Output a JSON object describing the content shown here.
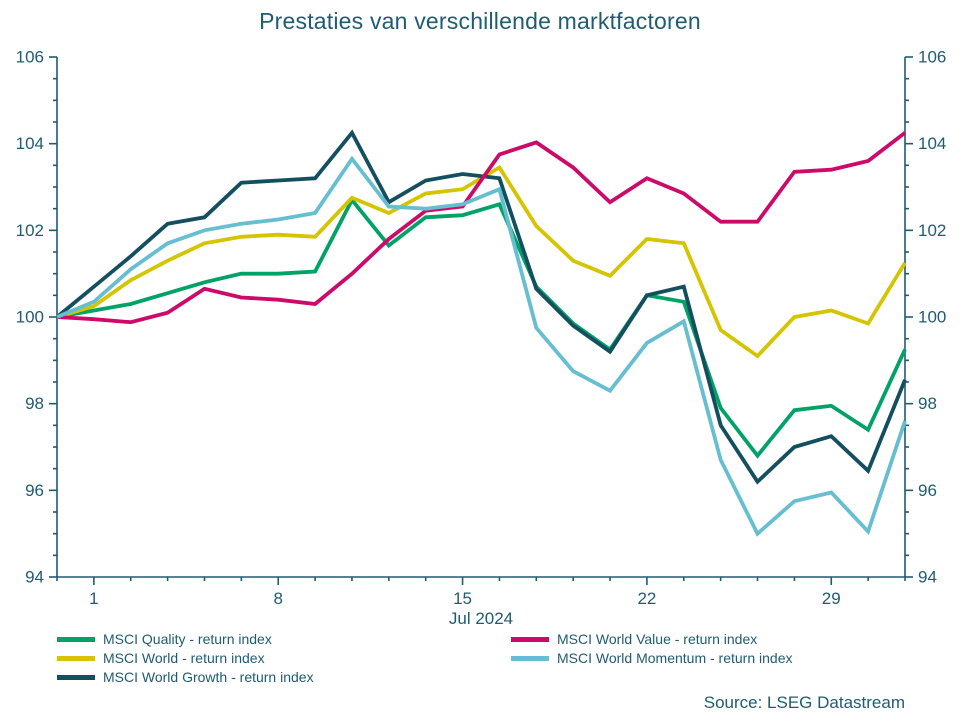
{
  "title": "Prestaties van verschillende marktfactoren",
  "source": "Source: LSEG Datastream",
  "colors": {
    "axis": "#1f5c72",
    "text": "#1f5c72",
    "background": "#ffffff"
  },
  "y_axis": {
    "min": 94,
    "max": 106,
    "major_step": 2,
    "minor_step": 0.5,
    "tick_labels": [
      "94",
      "96",
      "98",
      "100",
      "102",
      "104",
      "106"
    ]
  },
  "x_axis": {
    "label": "Jul 2024",
    "major_tick_labels": [
      "1",
      "8",
      "15",
      "22",
      "29"
    ],
    "major_tick_indices": [
      1,
      6,
      11,
      16,
      21
    ]
  },
  "chart_data": {
    "type": "line",
    "title": "Prestaties van verschillende marktfactoren",
    "xlabel": "Jul 2024",
    "ylabel": "",
    "ylim": [
      94,
      106
    ],
    "grid": false,
    "legend_position": "bottom-left-two-columns",
    "dates": [
      "2024-06-28",
      "2024-07-01",
      "2024-07-02",
      "2024-07-03",
      "2024-07-04",
      "2024-07-05",
      "2024-07-08",
      "2024-07-09",
      "2024-07-10",
      "2024-07-11",
      "2024-07-12",
      "2024-07-15",
      "2024-07-16",
      "2024-07-17",
      "2024-07-18",
      "2024-07-19",
      "2024-07-22",
      "2024-07-23",
      "2024-07-24",
      "2024-07-25",
      "2024-07-26",
      "2024-07-29",
      "2024-07-30",
      "2024-07-31"
    ],
    "series": [
      {
        "name": "MSCI Quality - return index",
        "slug": "msci-quality",
        "color": "#00a266",
        "values": [
          100,
          100.15,
          100.3,
          100.55,
          100.8,
          101.0,
          101.0,
          101.05,
          102.7,
          101.65,
          102.3,
          102.35,
          102.6,
          100.7,
          99.85,
          99.25,
          100.5,
          100.35,
          97.9,
          96.8,
          97.85,
          97.95,
          97.4,
          99.25
        ]
      },
      {
        "name": "MSCI World - return index",
        "slug": "msci-world",
        "color": "#d4c500",
        "values": [
          100,
          100.25,
          100.85,
          101.3,
          101.7,
          101.85,
          101.9,
          101.85,
          102.75,
          102.4,
          102.85,
          102.95,
          103.45,
          102.1,
          101.3,
          100.95,
          101.8,
          101.7,
          99.7,
          99.1,
          100.0,
          100.15,
          99.85,
          101.25
        ]
      },
      {
        "name": "MSCI World Growth - return index",
        "slug": "msci-world-growth",
        "color": "#134f5f",
        "values": [
          100,
          100.7,
          101.4,
          102.15,
          102.3,
          103.1,
          103.15,
          103.2,
          104.25,
          102.65,
          103.15,
          103.3,
          103.2,
          100.65,
          99.8,
          99.2,
          100.5,
          100.7,
          97.5,
          96.2,
          97.0,
          97.25,
          96.45,
          98.55
        ]
      },
      {
        "name": "MSCI World Value - return index",
        "slug": "msci-world-value",
        "color": "#cd0a6a",
        "values": [
          100,
          99.95,
          99.88,
          100.1,
          100.65,
          100.45,
          100.4,
          100.3,
          101.0,
          101.8,
          102.45,
          102.55,
          103.75,
          104.03,
          103.45,
          102.65,
          103.2,
          102.85,
          102.2,
          102.2,
          103.35,
          103.4,
          103.6,
          104.25
        ]
      },
      {
        "name": "MSCI World Momentum - return index",
        "slug": "msci-world-momentum",
        "color": "#66bfd1",
        "values": [
          100,
          100.35,
          101.1,
          101.7,
          102.0,
          102.15,
          102.25,
          102.4,
          103.65,
          102.55,
          102.5,
          102.6,
          102.95,
          99.75,
          98.75,
          98.3,
          99.4,
          99.9,
          96.7,
          95.0,
          95.75,
          95.95,
          95.05,
          97.6
        ]
      }
    ]
  }
}
